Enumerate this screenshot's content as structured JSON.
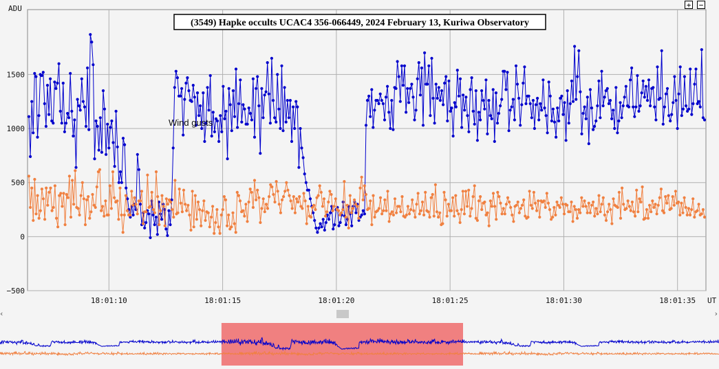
{
  "chart_data": {
    "type": "line",
    "title": "(3549) Hapke occults UCAC4 356-066449, 2024 February 13, Kuriwa Observatory",
    "ylabel": "ADU",
    "xlabel": "UT",
    "ylim": [
      -500,
      2100
    ],
    "yticks": [
      "1500",
      "1000",
      "500",
      "0",
      "−500"
    ],
    "ytick_values": [
      1500,
      1000,
      500,
      0,
      -500
    ],
    "xticks": [
      "18:01:10",
      "18:01:15",
      "18:01:20",
      "18:01:25",
      "18:01:30",
      "18:01:35"
    ],
    "xtick_seconds": [
      10,
      15,
      20,
      25,
      30,
      35
    ],
    "xlim_seconds": [
      6.42,
      36.25
    ],
    "grid": true,
    "annotation": "Wind gusts",
    "series": [
      {
        "color": "#0000cc",
        "values": [
          1110,
          740,
          1250,
          960,
          1510,
          1480,
          920,
          1120,
          1500,
          1490,
          1520,
          1230,
          1020,
          1400,
          1130,
          1460,
          1070,
          1050,
          1430,
          1370,
          1420,
          1600,
          1160,
          1050,
          1420,
          970,
          1050,
          1140,
          1100,
          1510,
          1160,
          930,
          1080,
          640,
          1270,
          1210,
          1170,
          1460,
          1250,
          1200,
          1020,
          1560,
          990,
          1870,
          1800,
          1590,
          720,
          1070,
          1020,
          800,
          1100,
          780,
          1350,
          1180,
          760,
          1040,
          820,
          1010,
          1070,
          870,
          650,
          1160,
          830,
          500,
          600,
          500,
          910,
          850,
          450,
          350,
          250,
          180,
          280,
          200,
          300,
          250,
          760,
          620,
          300,
          110,
          220,
          80,
          130,
          240,
          210,
          -10,
          330,
          200,
          110,
          180,
          20,
          320,
          210,
          160,
          300,
          250,
          70,
          10,
          240,
          110,
          340,
          820,
          1380,
          1530,
          1470,
          1300,
          1300,
          1370,
          940,
          1270,
          1420,
          1470,
          1350,
          1260,
          1250,
          1400,
          1290,
          1030,
          1330,
          1120,
          1210,
          1000,
          1330,
          880,
          1050,
          1380,
          1170,
          1490,
          930,
          1150,
          970,
          1090,
          1070,
          880,
          1120,
          970,
          1390,
          1090,
          1160,
          720,
          1370,
          1220,
          980,
          1350,
          1110,
          1550,
          1010,
          1230,
          1450,
          1060,
          1220,
          1180,
          1040,
          1040,
          1190,
          1140,
          1080,
          1460,
          920,
          1370,
          1480,
          1210,
          770,
          1370,
          1100,
          1310,
          1340,
          1610,
          1320,
          1050,
          1650,
          1260,
          1100,
          1060,
          1500,
          1180,
          1000,
          1580,
          980,
          1380,
          1060,
          1260,
          1100,
          1260,
          880,
          1200,
          1000,
          1250,
          1200,
          640,
          1000,
          820,
          730,
          580,
          500,
          430,
          430,
          350,
          280,
          220,
          150,
          80,
          40,
          80,
          120,
          90,
          160,
          60,
          130,
          200,
          160,
          220,
          280,
          70,
          110,
          250,
          270,
          100,
          130,
          200,
          320,
          190,
          110,
          160,
          280,
          210,
          100,
          280,
          320,
          220,
          300,
          150,
          180,
          200,
          240,
          210,
          1030,
          1260,
          1300,
          1110,
          1360,
          1010,
          1170,
          1260,
          1260,
          1230,
          1320,
          1260,
          1230,
          1080,
          1290,
          1390,
          1150,
          1000,
          1260,
          990,
          1380,
          1370,
          1620,
          1480,
          1250,
          1580,
          1400,
          1580,
          1150,
          1370,
          1240,
          1370,
          1410,
          1290,
          1080,
          1170,
          1460,
          1610,
          1310,
          1560,
          1030,
          1700,
          1410,
          1410,
          1580,
          1120,
          1650,
          1280,
          1050,
          1410,
          1280,
          1380,
          1260,
          1350,
          1220,
          1420,
          1480,
          1070,
          1440,
          1160,
          1190,
          930,
          1240,
          1200,
          1540,
          1300,
          1460,
          1010,
          1310,
          1170,
          1290,
          1120,
          970,
          1360,
          1470,
          1160,
          1040,
          1350,
          890,
          1150,
          1080,
          1350,
          1260,
          1180,
          1450,
          950,
          1260,
          1120,
          1090,
          1360,
          880,
          1330,
          1050,
          1140,
          1210,
          1270,
          1530,
          1530,
          1360,
          1520,
          980,
          1170,
          1200,
          1270,
          1080,
          1580,
          1410,
          1280,
          1030,
          1220,
          1420,
          1570,
          1230,
          1300,
          1300,
          1230,
          1100,
          1260,
          1000,
          1220,
          1280,
          1080,
          1230,
          1170,
          1450,
          1190,
          1120,
          960,
          1430,
          1300,
          1070,
          1180,
          1060,
          920,
          1190,
          1070,
          1280,
          1300,
          1130,
          1240,
          890,
          1350,
          1050,
          1230,
          1440,
          1250,
          1760,
          1270,
          1480,
          1720,
          1340,
          950,
          1140,
          1200,
          1090,
          1290,
          860,
          1360,
          1190,
          990,
          1020,
          1070,
          1210,
          1440,
          1100,
          1530,
          1210,
          1290,
          1350,
          1370,
          1230,
          1260,
          1090,
          1170,
          1000,
          1380,
          960,
          1070,
          1240,
          1100,
          1210,
          1290,
          1390,
          1210,
          1200,
          1450,
          1560,
          1200,
          1110,
          1200,
          1490,
          1160,
          1210,
          1330,
          1440,
          1290,
          1390,
          1260,
          1450,
          1210,
          1370,
          1380,
          1200,
          1080,
          1570,
          1270,
          1280,
          1720,
          1040,
          1200,
          1320,
          1370,
          1120,
          1070,
          1130,
          1240,
          1480,
          1260,
          1000,
          1320,
          1570,
          1120,
          1180,
          1480,
          1210,
          1160,
          1180,
          1550,
          1130,
          1230,
          1410,
          1550,
          1230,
          1250,
          1200,
          1730,
          1100,
          1080
        ]
      },
      {
        "color": "#f08040",
        "values": [
          560,
          270,
          450,
          150,
          530,
          210,
          380,
          170,
          240,
          440,
          350,
          160,
          450,
          290,
          410,
          450,
          240,
          270,
          470,
          170,
          90,
          380,
          400,
          280,
          400,
          110,
          390,
          360,
          560,
          180,
          520,
          300,
          610,
          270,
          260,
          200,
          380,
          500,
          350,
          110,
          340,
          370,
          170,
          230,
          390,
          290,
          270,
          460,
          600,
          620,
          240,
          280,
          190,
          330,
          200,
          200,
          470,
          260,
          600,
          360,
          320,
          330,
          160,
          450,
          200,
          40,
          200,
          380,
          240,
          200,
          200,
          420,
          290,
          360,
          300,
          210,
          330,
          330,
          420,
          120,
          230,
          230,
          570,
          270,
          280,
          410,
          250,
          220,
          600,
          370,
          110,
          240,
          380,
          280,
          100,
          350,
          300,
          340,
          320,
          250,
          180,
          520,
          210,
          220,
          440,
          310,
          230,
          430,
          300,
          240,
          290,
          200,
          60,
          420,
          90,
          380,
          160,
          320,
          250,
          100,
          240,
          330,
          150,
          230,
          220,
          90,
          180,
          280,
          30,
          130,
          250,
          90,
          30,
          200,
          250,
          370,
          340,
          100,
          200,
          70,
          90,
          220,
          120,
          40,
          410,
          380,
          330,
          230,
          240,
          190,
          300,
          140,
          320,
          440,
          410,
          270,
          520,
          340,
          430,
          360,
          130,
          260,
          350,
          230,
          300,
          260,
          370,
          480,
          460,
          390,
          320,
          510,
          420,
          300,
          220,
          340,
          370,
          420,
          500,
          430,
          380,
          330,
          260,
          370,
          220,
          350,
          320,
          370,
          280,
          260,
          400,
          330,
          120,
          280,
          190,
          180,
          270,
          290,
          250,
          360,
          380,
          470,
          410,
          280,
          350,
          190,
          230,
          320,
          420,
          390,
          240,
          280,
          350,
          250,
          240,
          200,
          220,
          250,
          510,
          180,
          290,
          80,
          380,
          220,
          260,
          340,
          300,
          280,
          170,
          450,
          550,
          340,
          470,
          390,
          250,
          260,
          330,
          110,
          380,
          180,
          230,
          240,
          260,
          360,
          210,
          240,
          340,
          240,
          420,
          140,
          210,
          230,
          200,
          350,
          220,
          280,
          280,
          230,
          370,
          190,
          180,
          200,
          280,
          210,
          250,
          340,
          240,
          180,
          300,
          400,
          210,
          240,
          320,
          200,
          410,
          240,
          230,
          180,
          360,
          390,
          190,
          480,
          230,
          180,
          220,
          110,
          120,
          410,
          340,
          190,
          300,
          240,
          240,
          360,
          190,
          380,
          240,
          210,
          130,
          250,
          420,
          210,
          420,
          280,
          430,
          190,
          260,
          370,
          470,
          170,
          150,
          330,
          370,
          250,
          310,
          320,
          200,
          220,
          100,
          330,
          280,
          400,
          280,
          160,
          410,
          370,
          310,
          210,
          260,
          210,
          300,
          360,
          320,
          270,
          200,
          140,
          280,
          290,
          320,
          220,
          260,
          290,
          340,
          190,
          170,
          180,
          420,
          290,
          260,
          410,
          310,
          240,
          330,
          180,
          330,
          320,
          330,
          270,
          400,
          310,
          250,
          160,
          180,
          270,
          200,
          320,
          290,
          270,
          360,
          300,
          210,
          300,
          290,
          230,
          230,
          320,
          140,
          280,
          250,
          170,
          250,
          220,
          360,
          280,
          330,
          280,
          220,
          310,
          220,
          290,
          320,
          190,
          260,
          210,
          380,
          230,
          300,
          360,
          200,
          150,
          230,
          300,
          250,
          120,
          350,
          290,
          280,
          270,
          410,
          170,
          450,
          300,
          250,
          260,
          330,
          280,
          240,
          320,
          230,
          190,
          430,
          230,
          350,
          320,
          460,
          160,
          170,
          250,
          170,
          290,
          230,
          330,
          270,
          300,
          210,
          290,
          360,
          440,
          240,
          220,
          370,
          310,
          380,
          250,
          260,
          370,
          290,
          420,
          310,
          320,
          200,
          310,
          220,
          360,
          270,
          200,
          260,
          200,
          250,
          350,
          180,
          230,
          240,
          300,
          200,
          210,
          250,
          180
        ]
      }
    ]
  },
  "scrollbar": {
    "left_arrow": "‹",
    "right_arrow": "›"
  },
  "zoom": {
    "in_label": "+",
    "out_label": "−"
  },
  "overview": {
    "highlight_start_fraction": 0.308,
    "highlight_end_fraction": 0.644,
    "highlight_color": "#f08080"
  }
}
